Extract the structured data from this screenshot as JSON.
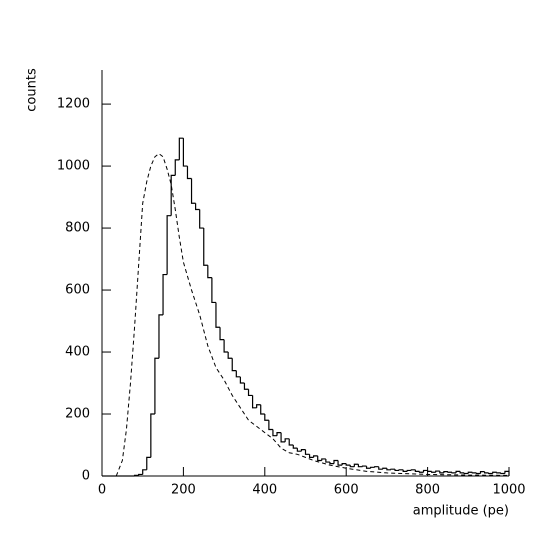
{
  "chart_data": [
    {
      "type": "histogram",
      "xlabel": "amplitude (pe)",
      "ylabel": "counts",
      "xlim": [
        0,
        1000
      ],
      "ylim": [
        0,
        1310
      ],
      "xticks": [
        0,
        200,
        400,
        600,
        800,
        1000
      ],
      "yticks": [
        0,
        200,
        400,
        600,
        800,
        1000,
        1200
      ],
      "color": "#000000",
      "line_style": "solid",
      "bins": [
        0,
        10,
        20,
        30,
        40,
        50,
        60,
        70,
        80,
        90,
        100,
        110,
        120,
        130,
        140,
        150,
        160,
        170,
        180,
        190,
        200,
        210,
        220,
        230,
        240,
        250,
        260,
        270,
        280,
        290,
        300,
        310,
        320,
        330,
        340,
        350,
        360,
        370,
        380,
        390,
        400,
        410,
        420,
        430,
        440,
        450,
        460,
        470,
        480,
        490,
        500,
        510,
        520,
        530,
        540,
        550,
        560,
        570,
        580,
        590,
        600,
        610,
        620,
        630,
        640,
        650,
        660,
        670,
        680,
        690,
        700,
        710,
        720,
        730,
        740,
        750,
        760,
        770,
        780,
        790,
        800,
        810,
        820,
        830,
        840,
        850,
        860,
        870,
        880,
        890,
        900,
        910,
        920,
        930,
        940,
        950,
        960,
        970,
        980,
        990,
        1000
      ],
      "values": [
        0,
        0,
        0,
        0,
        0,
        0,
        0,
        0,
        2,
        5,
        20,
        60,
        200,
        380,
        520,
        650,
        840,
        970,
        1020,
        1090,
        1000,
        960,
        880,
        860,
        800,
        680,
        640,
        560,
        480,
        440,
        400,
        380,
        340,
        320,
        300,
        280,
        260,
        220,
        230,
        200,
        180,
        150,
        130,
        140,
        110,
        120,
        100,
        90,
        80,
        85,
        70,
        60,
        65,
        50,
        55,
        45,
        40,
        50,
        35,
        40,
        35,
        30,
        38,
        30,
        32,
        25,
        28,
        30,
        22,
        25,
        20,
        22,
        18,
        20,
        15,
        18,
        20,
        15,
        12,
        18,
        15,
        12,
        16,
        10,
        14,
        12,
        10,
        15,
        10,
        8,
        12,
        10,
        8,
        14,
        10,
        8,
        12,
        10,
        8,
        15
      ]
    },
    {
      "type": "line",
      "color": "#000000",
      "line_style": "dashed",
      "x": [
        35,
        50,
        60,
        70,
        80,
        90,
        100,
        110,
        120,
        130,
        140,
        150,
        160,
        170,
        180,
        190,
        200,
        220,
        240,
        260,
        280,
        300,
        320,
        340,
        360,
        380,
        400,
        420,
        440,
        460,
        480,
        500,
        520,
        560,
        600,
        650,
        700,
        800,
        900,
        1000
      ],
      "values": [
        0,
        50,
        150,
        300,
        480,
        680,
        880,
        950,
        1000,
        1030,
        1040,
        1030,
        990,
        940,
        860,
        770,
        690,
        600,
        520,
        420,
        350,
        310,
        260,
        220,
        180,
        160,
        140,
        120,
        90,
        75,
        70,
        60,
        50,
        35,
        25,
        15,
        10,
        5,
        3,
        2
      ]
    }
  ]
}
